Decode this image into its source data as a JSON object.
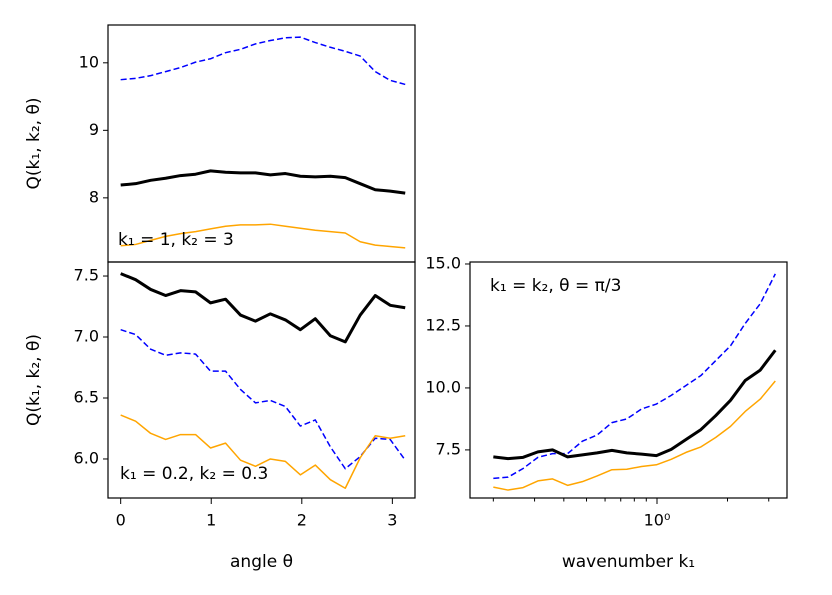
{
  "chart_data": [
    {
      "type": "line",
      "ylabel": "Q(k₁, k₂, θ)",
      "annotation": "k₁ = 1, k₂ = 3",
      "x": [
        0,
        0.165,
        0.331,
        0.496,
        0.661,
        0.827,
        0.992,
        1.158,
        1.323,
        1.488,
        1.653,
        1.819,
        1.984,
        2.149,
        2.315,
        2.48,
        2.645,
        2.811,
        2.976,
        3.142
      ],
      "xlim": [
        -0.14,
        3.25
      ],
      "ylim": [
        7.05,
        10.56
      ],
      "yticks": [
        8,
        9,
        10
      ],
      "series": [
        {
          "color": "#0000ff",
          "linestyle": "dashed",
          "linewidth": 1.5,
          "values": [
            9.75,
            9.77,
            9.81,
            9.87,
            9.93,
            10.01,
            10.06,
            10.15,
            10.2,
            10.28,
            10.33,
            10.37,
            10.38,
            10.3,
            10.23,
            10.17,
            10.1,
            9.87,
            9.74,
            9.68
          ]
        },
        {
          "color": "#000000",
          "linestyle": "solid",
          "linewidth": 3,
          "values": [
            8.19,
            8.21,
            8.26,
            8.29,
            8.33,
            8.35,
            8.4,
            8.38,
            8.37,
            8.37,
            8.34,
            8.36,
            8.32,
            8.31,
            8.32,
            8.3,
            8.21,
            8.12,
            8.1,
            8.07
          ]
        },
        {
          "color": "#ffa500",
          "linestyle": "solid",
          "linewidth": 1.5,
          "values": [
            7.29,
            7.31,
            7.37,
            7.43,
            7.47,
            7.5,
            7.54,
            7.58,
            7.6,
            7.6,
            7.61,
            7.58,
            7.55,
            7.52,
            7.5,
            7.48,
            7.35,
            7.3,
            7.28,
            7.26
          ]
        }
      ]
    },
    {
      "type": "line",
      "ylabel": "Q(k₁, k₂, θ)",
      "xlabel": "angle θ",
      "annotation": "k₁ = 0.2, k₂ = 0.3",
      "x": [
        0,
        0.165,
        0.331,
        0.496,
        0.661,
        0.827,
        0.992,
        1.158,
        1.323,
        1.488,
        1.653,
        1.819,
        1.984,
        2.149,
        2.315,
        2.48,
        2.645,
        2.811,
        2.976,
        3.142
      ],
      "xlim": [
        -0.14,
        3.25
      ],
      "xticks": [
        0,
        1,
        2,
        3
      ],
      "ylim": [
        5.68,
        7.615
      ],
      "yticks": [
        {
          "value": 6,
          "label": "6.0"
        },
        6.5,
        {
          "value": 7,
          "label": "7.0"
        },
        7.5
      ],
      "series": [
        {
          "color": "#0000ff",
          "linestyle": "dashed",
          "linewidth": 1.5,
          "values": [
            7.06,
            7.02,
            6.9,
            6.85,
            6.87,
            6.86,
            6.72,
            6.72,
            6.57,
            6.46,
            6.48,
            6.43,
            6.27,
            6.32,
            6.1,
            5.92,
            6.02,
            6.17,
            6.16,
            5.99
          ]
        },
        {
          "color": "#000000",
          "linestyle": "solid",
          "linewidth": 3,
          "values": [
            7.52,
            7.47,
            7.39,
            7.34,
            7.38,
            7.37,
            7.28,
            7.31,
            7.18,
            7.13,
            7.19,
            7.14,
            7.06,
            7.15,
            7.01,
            6.96,
            7.18,
            7.34,
            7.26,
            7.24
          ]
        },
        {
          "color": "#ffa500",
          "linestyle": "solid",
          "linewidth": 1.5,
          "values": [
            6.36,
            6.31,
            6.21,
            6.16,
            6.2,
            6.2,
            6.09,
            6.13,
            5.99,
            5.94,
            6.0,
            5.98,
            5.87,
            5.95,
            5.83,
            5.76,
            6.01,
            6.19,
            6.17,
            6.19
          ]
        }
      ]
    },
    {
      "type": "line",
      "xlabel": "wavenumber k₁",
      "annotation": "k₁ = k₂, θ = π/3",
      "xscale": "log",
      "x": [
        0.2,
        0.231,
        0.268,
        0.31,
        0.358,
        0.415,
        0.48,
        0.555,
        0.642,
        0.743,
        0.859,
        0.994,
        1.15,
        1.33,
        1.54,
        1.78,
        2.06,
        2.38,
        2.76,
        3.2
      ],
      "xlim": [
        0.159,
        3.59
      ],
      "xticks": [
        {
          "value": 1,
          "label": "10⁰"
        }
      ],
      "xminorticks": [
        0.2,
        0.3,
        0.4,
        0.5,
        0.6,
        0.7,
        0.8,
        0.9,
        2,
        3
      ],
      "ylim": [
        5.56,
        15.08
      ],
      "yticks": [
        7.5,
        {
          "value": 10,
          "label": "10.0"
        },
        12.5,
        {
          "value": 15,
          "label": "15.0"
        }
      ],
      "series": [
        {
          "color": "#0000ff",
          "linestyle": "dashed",
          "linewidth": 1.5,
          "values": [
            6.35,
            6.4,
            6.75,
            7.2,
            7.35,
            7.35,
            7.85,
            8.1,
            8.6,
            8.75,
            9.15,
            9.35,
            9.7,
            10.1,
            10.5,
            11.1,
            11.7,
            12.6,
            13.4,
            14.6
          ]
        },
        {
          "color": "#000000",
          "linestyle": "solid",
          "linewidth": 3,
          "values": [
            7.22,
            7.15,
            7.2,
            7.42,
            7.5,
            7.22,
            7.3,
            7.38,
            7.48,
            7.38,
            7.33,
            7.27,
            7.52,
            7.92,
            8.32,
            8.88,
            9.5,
            10.3,
            10.72,
            11.52
          ]
        },
        {
          "color": "#ffa500",
          "linestyle": "solid",
          "linewidth": 1.5,
          "values": [
            6.0,
            5.88,
            5.98,
            6.25,
            6.33,
            6.07,
            6.22,
            6.45,
            6.7,
            6.72,
            6.83,
            6.9,
            7.12,
            7.4,
            7.62,
            8.0,
            8.45,
            9.05,
            9.55,
            10.28
          ]
        }
      ]
    }
  ]
}
